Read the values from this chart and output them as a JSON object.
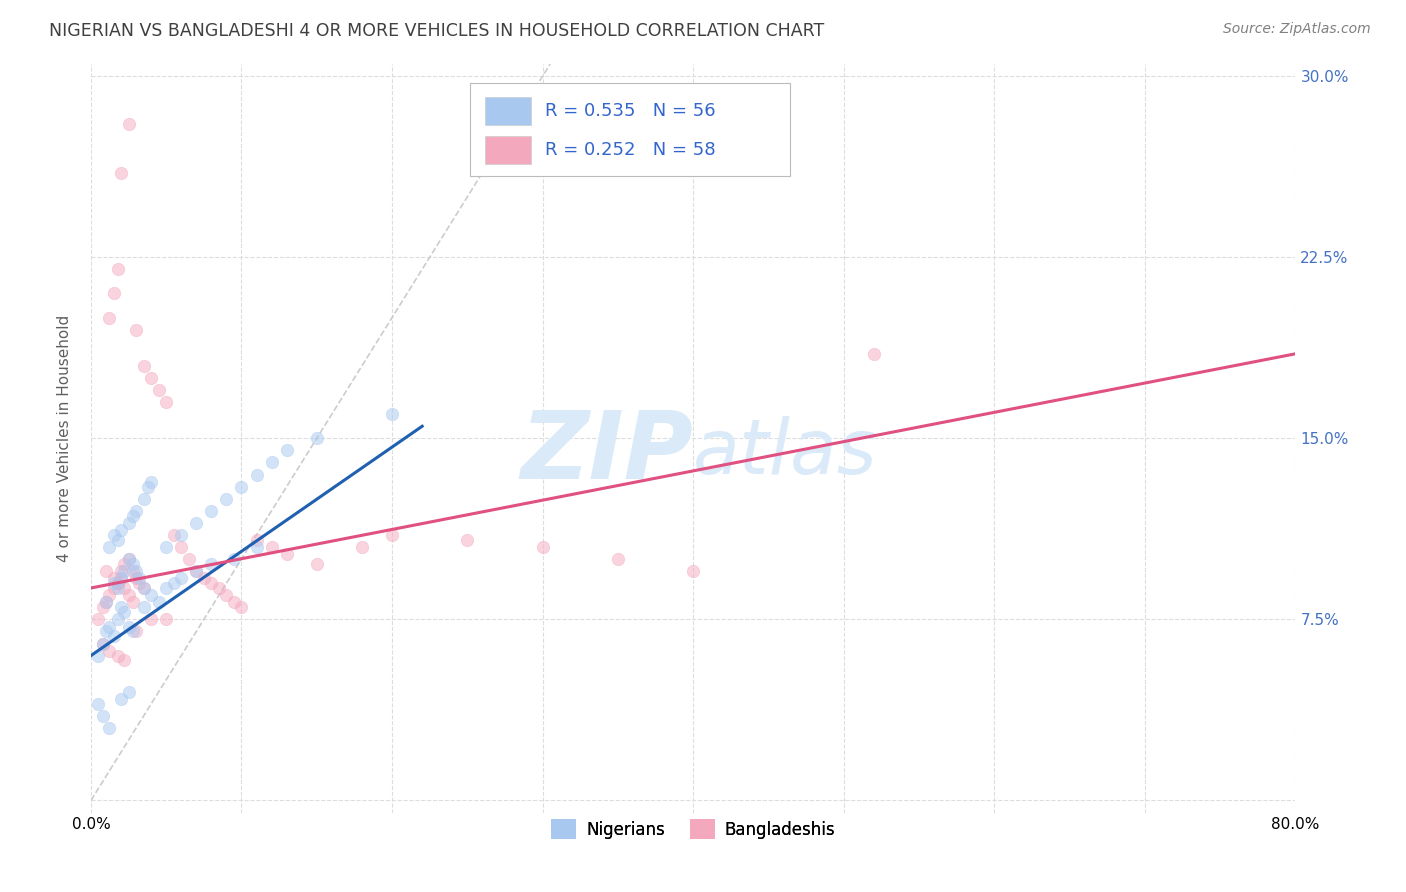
{
  "title": "NIGERIAN VS BANGLADESHI 4 OR MORE VEHICLES IN HOUSEHOLD CORRELATION CHART",
  "source": "Source: ZipAtlas.com",
  "ylabel": "4 or more Vehicles in Household",
  "xlim": [
    0.0,
    0.8
  ],
  "ylim": [
    -0.005,
    0.305
  ],
  "y_ticks": [
    0.0,
    0.075,
    0.15,
    0.225,
    0.3
  ],
  "x_ticks": [
    0.0,
    0.1,
    0.2,
    0.3,
    0.4,
    0.5,
    0.6,
    0.7,
    0.8
  ],
  "color_nigerian": "#A8C8F0",
  "color_bangladeshi": "#F4A8BE",
  "color_trend_nigerian": "#2060B0",
  "color_trend_bangladeshi": "#E05080",
  "color_diag": "#CCCCCC",
  "color_grid": "#DDDDDD",
  "color_right_axis": "#4472C4",
  "color_legend_text": "#3366CC",
  "color_title": "#404040",
  "color_source": "#808080",
  "color_ylabel": "#606060",
  "color_watermark": "#DAEAF8",
  "nigerian_x": [
    0.005,
    0.008,
    0.01,
    0.012,
    0.015,
    0.018,
    0.02,
    0.022,
    0.025,
    0.028,
    0.01,
    0.015,
    0.018,
    0.02,
    0.022,
    0.025,
    0.028,
    0.03,
    0.032,
    0.035,
    0.012,
    0.015,
    0.018,
    0.02,
    0.025,
    0.028,
    0.03,
    0.035,
    0.038,
    0.04,
    0.05,
    0.06,
    0.07,
    0.08,
    0.09,
    0.1,
    0.11,
    0.12,
    0.13,
    0.15,
    0.035,
    0.04,
    0.045,
    0.05,
    0.055,
    0.06,
    0.07,
    0.08,
    0.095,
    0.11,
    0.005,
    0.008,
    0.012,
    0.02,
    0.025,
    0.2
  ],
  "nigerian_y": [
    0.06,
    0.065,
    0.07,
    0.072,
    0.068,
    0.075,
    0.08,
    0.078,
    0.072,
    0.07,
    0.082,
    0.09,
    0.088,
    0.092,
    0.095,
    0.1,
    0.098,
    0.095,
    0.092,
    0.088,
    0.105,
    0.11,
    0.108,
    0.112,
    0.115,
    0.118,
    0.12,
    0.125,
    0.13,
    0.132,
    0.105,
    0.11,
    0.115,
    0.12,
    0.125,
    0.13,
    0.135,
    0.14,
    0.145,
    0.15,
    0.08,
    0.085,
    0.082,
    0.088,
    0.09,
    0.092,
    0.095,
    0.098,
    0.1,
    0.105,
    0.04,
    0.035,
    0.03,
    0.042,
    0.045,
    0.16
  ],
  "bangladeshi_x": [
    0.005,
    0.008,
    0.01,
    0.012,
    0.015,
    0.018,
    0.02,
    0.022,
    0.025,
    0.028,
    0.01,
    0.015,
    0.018,
    0.02,
    0.022,
    0.025,
    0.028,
    0.03,
    0.032,
    0.035,
    0.012,
    0.015,
    0.018,
    0.02,
    0.025,
    0.03,
    0.035,
    0.04,
    0.045,
    0.05,
    0.055,
    0.06,
    0.065,
    0.07,
    0.075,
    0.08,
    0.085,
    0.09,
    0.095,
    0.1,
    0.11,
    0.12,
    0.13,
    0.15,
    0.18,
    0.2,
    0.25,
    0.3,
    0.35,
    0.4,
    0.008,
    0.012,
    0.018,
    0.022,
    0.03,
    0.04,
    0.05,
    0.52
  ],
  "bangladeshi_y": [
    0.075,
    0.08,
    0.082,
    0.085,
    0.088,
    0.09,
    0.092,
    0.088,
    0.085,
    0.082,
    0.095,
    0.092,
    0.09,
    0.095,
    0.098,
    0.1,
    0.095,
    0.092,
    0.09,
    0.088,
    0.2,
    0.21,
    0.22,
    0.26,
    0.28,
    0.195,
    0.18,
    0.175,
    0.17,
    0.165,
    0.11,
    0.105,
    0.1,
    0.095,
    0.092,
    0.09,
    0.088,
    0.085,
    0.082,
    0.08,
    0.108,
    0.105,
    0.102,
    0.098,
    0.105,
    0.11,
    0.108,
    0.105,
    0.1,
    0.095,
    0.065,
    0.062,
    0.06,
    0.058,
    0.07,
    0.075,
    0.075,
    0.185
  ],
  "marker_size": 80,
  "alpha_scatter": 0.5,
  "trend_nig_x0": 0.0,
  "trend_nig_y0": 0.06,
  "trend_nig_x1": 0.22,
  "trend_nig_y1": 0.155,
  "trend_ban_x0": 0.0,
  "trend_ban_y0": 0.088,
  "trend_ban_x1": 0.8,
  "trend_ban_y1": 0.185
}
